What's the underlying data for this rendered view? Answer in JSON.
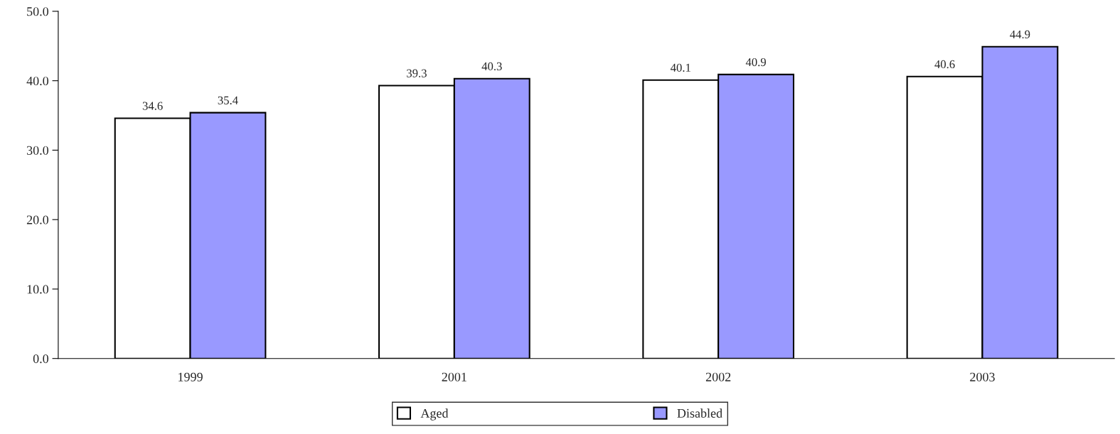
{
  "chart_data": {
    "type": "bar",
    "categories": [
      "1999",
      "2001",
      "2002",
      "2003"
    ],
    "series": [
      {
        "name": "Aged",
        "color": "#ffffff",
        "values": [
          34.6,
          39.3,
          40.1,
          40.6
        ]
      },
      {
        "name": "Disabled",
        "color": "#9999ff",
        "values": [
          35.4,
          40.3,
          40.9,
          44.9
        ]
      }
    ],
    "ylim": [
      0,
      50
    ],
    "yticks": [
      {
        "value": 0,
        "label": "0.0"
      },
      {
        "value": 10,
        "label": "10.0"
      },
      {
        "value": 20,
        "label": "20.0"
      },
      {
        "value": 30,
        "label": "30.0"
      },
      {
        "value": 40,
        "label": "40.0"
      },
      {
        "value": 50,
        "label": "50.0"
      }
    ],
    "data_labels": true,
    "legend": "bottom",
    "grid": false
  }
}
